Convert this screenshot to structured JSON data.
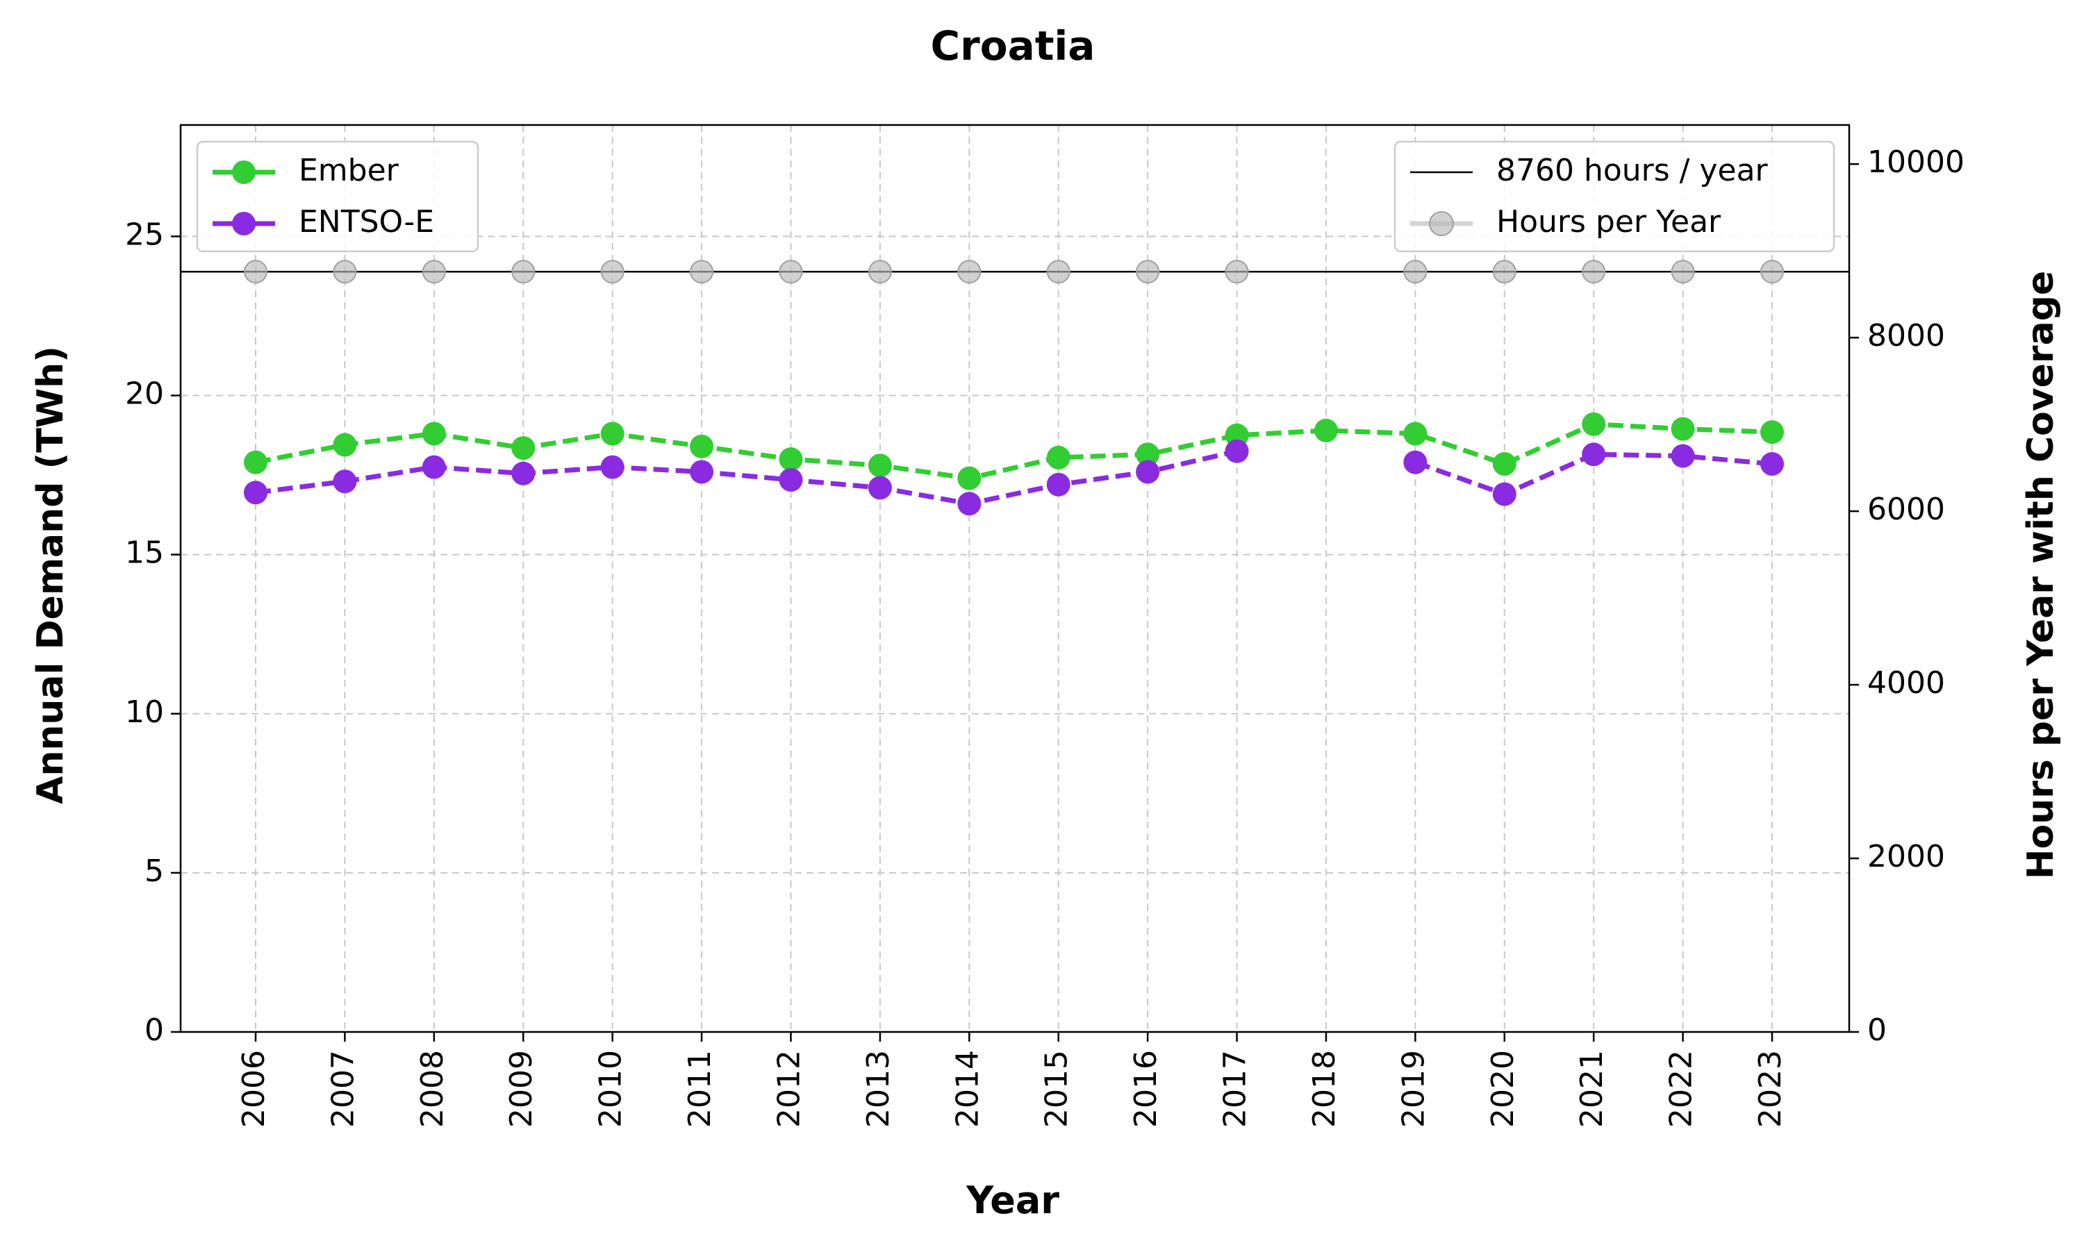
{
  "chart_data": {
    "type": "line",
    "title": "Croatia",
    "xlabel": "Year",
    "ylabel": "Annual Demand (TWh)",
    "y2label": "Hours per Year with Coverage",
    "categories": [
      "2006",
      "2007",
      "2008",
      "2009",
      "2010",
      "2011",
      "2012",
      "2013",
      "2014",
      "2015",
      "2016",
      "2017",
      "2018",
      "2019",
      "2020",
      "2021",
      "2022",
      "2023"
    ],
    "ylim": [
      0,
      28.5
    ],
    "y2lim": [
      0,
      10450
    ],
    "yticks": [
      0,
      5,
      10,
      15,
      20,
      25
    ],
    "y2ticks": [
      0,
      2000,
      4000,
      6000,
      8000,
      10000
    ],
    "grid": true,
    "series": [
      {
        "name": "Ember",
        "axis": "left",
        "color": "#32cd32",
        "linestyle": "dashed",
        "marker": "circle",
        "values": [
          17.9,
          18.45,
          18.8,
          18.35,
          18.8,
          18.4,
          18.0,
          17.8,
          17.4,
          18.05,
          18.15,
          18.75,
          18.9,
          18.8,
          17.85,
          19.1,
          18.95,
          18.85
        ]
      },
      {
        "name": "ENTSO-E",
        "axis": "left",
        "color": "#8a2be2",
        "linestyle": "dashed",
        "marker": "circle",
        "values": [
          16.95,
          17.3,
          17.75,
          17.55,
          17.75,
          17.6,
          17.35,
          17.1,
          16.6,
          17.2,
          17.6,
          18.25,
          null,
          17.9,
          16.9,
          18.15,
          18.1,
          17.85
        ]
      },
      {
        "name": "Hours per Year",
        "axis": "right",
        "color": "#b8b8b8",
        "linestyle": "solid",
        "marker": "circle",
        "values": [
          8760,
          8760,
          8760,
          8760,
          8760,
          8760,
          8760,
          8760,
          8760,
          8760,
          8760,
          8760,
          null,
          8760,
          8760,
          8760,
          8760,
          8760
        ]
      }
    ],
    "reference_lines": [
      {
        "name": "8760 hours / year",
        "axis": "right",
        "value": 8760,
        "color": "#000000"
      }
    ],
    "legends": [
      {
        "placement": "top-left",
        "entries": [
          "Ember",
          "ENTSO-E"
        ]
      },
      {
        "placement": "top-right",
        "entries": [
          "8760 hours / year",
          "Hours per Year"
        ]
      }
    ]
  }
}
